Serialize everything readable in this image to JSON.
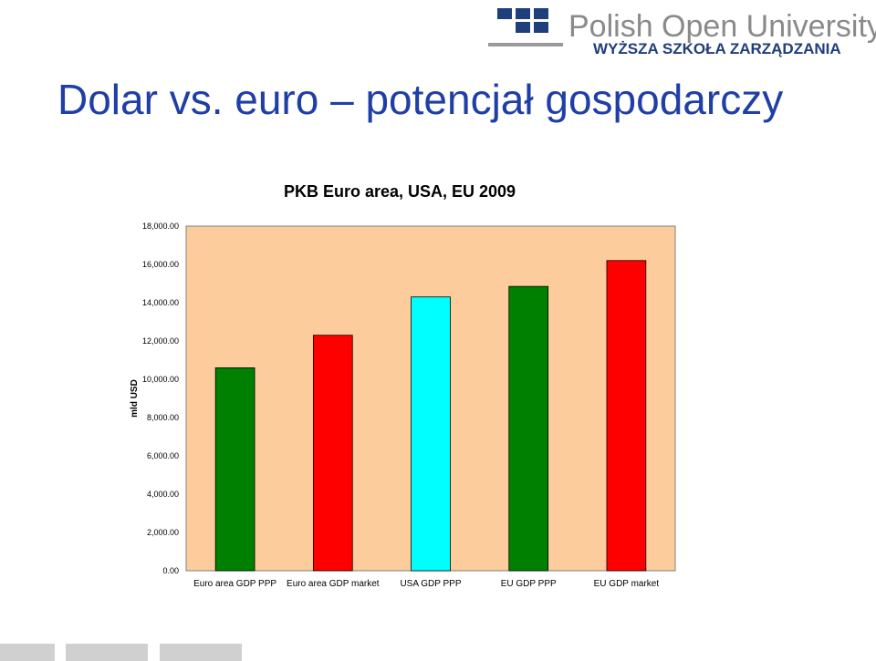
{
  "header": {
    "logo_name": "Polish Open University",
    "logo_sub": "WYŻSZA SZKOŁA ZARZĄDZANIA"
  },
  "slide": {
    "title": "Dolar vs. euro – potencjał gospodarczy"
  },
  "colors": {
    "title": "#1f3fa6",
    "logo_blue": "#1f3e7c",
    "plot_bg": "#fdcc9c",
    "green": "#008000",
    "red": "#ff0000",
    "cyan": "#00ffff"
  },
  "chart_data": {
    "type": "bar",
    "title": "PKB Euro area, USA, EU 2009",
    "xlabel": "",
    "ylabel": "mld USD",
    "ylim": [
      0,
      18000
    ],
    "yticks": [
      0,
      2000,
      4000,
      6000,
      8000,
      10000,
      12000,
      14000,
      16000,
      18000
    ],
    "ytick_labels": [
      "0.00",
      "2,000.00",
      "4,000.00",
      "6,000.00",
      "8,000.00",
      "10,000.00",
      "12,000.00",
      "14,000.00",
      "16,000.00",
      "18,000.00"
    ],
    "categories": [
      "Euro area GDP PPP",
      "Euro area GDP market",
      "USA GDP PPP",
      "EU GDP PPP",
      "EU GDP market"
    ],
    "values": [
      10600,
      12300,
      14300,
      14850,
      16200
    ],
    "bar_colors": [
      "#008000",
      "#ff0000",
      "#00ffff",
      "#008000",
      "#ff0000"
    ],
    "grid": false,
    "legend": "none"
  }
}
